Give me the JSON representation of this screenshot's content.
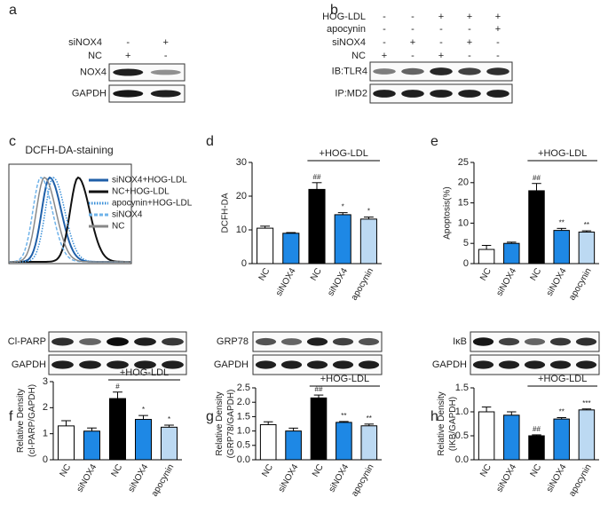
{
  "panel_letters": [
    "a",
    "b",
    "c",
    "d",
    "e",
    "f",
    "g",
    "h"
  ],
  "blot_a": {
    "conditions": [
      {
        "label": "siNOX4",
        "signs": [
          "-",
          "+"
        ]
      },
      {
        "label": "NC",
        "signs": [
          "+",
          "-"
        ]
      }
    ],
    "rows": [
      "NOX4",
      "GAPDH"
    ]
  },
  "blot_b": {
    "conditions": [
      {
        "label": "HOG-LDL",
        "signs": [
          "-",
          "-",
          "+",
          "+",
          "+"
        ]
      },
      {
        "label": "apocynin",
        "signs": [
          "-",
          "-",
          "-",
          "-",
          "+"
        ]
      },
      {
        "label": "siNOX4",
        "signs": [
          "-",
          "+",
          "-",
          "+",
          "-"
        ]
      },
      {
        "label": "NC",
        "signs": [
          "+",
          "-",
          "+",
          "-",
          "-"
        ]
      }
    ],
    "rows": [
      "IB:TLR4",
      "IP:MD2"
    ]
  },
  "flow_c": {
    "title": "DCFH-DA-staining",
    "legend": [
      {
        "name": "siNOX4+HOG-LDL",
        "color": "#1f5fa8",
        "line_style": "solid"
      },
      {
        "name": "NC+HOG-LDL",
        "color": "#111111",
        "line_style": "solid"
      },
      {
        "name": "apocynin+HOG-LDL",
        "color": "#3a8fd8",
        "line_style": "dotted"
      },
      {
        "name": "siNOX4",
        "color": "#6fb3ea",
        "line_style": "dashed"
      },
      {
        "name": "NC",
        "color": "#888888",
        "line_style": "solid"
      }
    ]
  },
  "blot_f": {
    "rows": [
      "Cl-PARP",
      "GAPDH"
    ]
  },
  "blot_g": {
    "rows": [
      "GRP78",
      "GAPDH"
    ]
  },
  "blot_h": {
    "rows": [
      "IκB",
      "GAPDH"
    ]
  },
  "chart_data": [
    {
      "type": "bar",
      "categories": [
        "NC",
        "siNOX4",
        "NC",
        "siNOX4",
        "apocynin"
      ],
      "values": [
        10.5,
        9,
        22,
        14.5,
        13.2
      ],
      "errors": [
        0.6,
        0.2,
        2,
        0.6,
        0.6
      ],
      "colors": [
        "#ffffff",
        "#1e88e5",
        "#000000",
        "#1e88e5",
        "#bcd9f2"
      ],
      "ylabel": [
        "DCFH-DA"
      ],
      "ylim": [
        0,
        30
      ],
      "yticks": [
        0,
        10,
        20,
        30
      ],
      "annotations": [
        null,
        null,
        "##",
        "*",
        "*"
      ],
      "bracket_label": "+HOG-LDL"
    },
    {
      "type": "bar",
      "categories": [
        "NC",
        "siNOX4",
        "NC",
        "siNOX4",
        "apocynin"
      ],
      "values": [
        3.5,
        5,
        18,
        8.2,
        7.8
      ],
      "errors": [
        1,
        0.3,
        1.8,
        0.5,
        0.3
      ],
      "colors": [
        "#ffffff",
        "#1e88e5",
        "#000000",
        "#1e88e5",
        "#bcd9f2"
      ],
      "ylabel": [
        "Apoptosis(%)"
      ],
      "ylim": [
        0,
        25
      ],
      "yticks": [
        0,
        5,
        10,
        15,
        20,
        25
      ],
      "annotations": [
        null,
        null,
        "##",
        "**",
        "**"
      ],
      "bracket_label": "+HOG-LDL"
    },
    {
      "type": "bar",
      "categories": [
        "NC",
        "siNOX4",
        "NC",
        "siNOX4",
        "apocynin"
      ],
      "values": [
        1.3,
        1.1,
        2.35,
        1.55,
        1.25
      ],
      "errors": [
        0.2,
        0.12,
        0.25,
        0.15,
        0.08
      ],
      "colors": [
        "#ffffff",
        "#1e88e5",
        "#000000",
        "#1e88e5",
        "#bcd9f2"
      ],
      "ylabel": [
        "Relative Density",
        "(cl-PARP/GAPDH)"
      ],
      "ylim": [
        0,
        3
      ],
      "yticks": [
        0,
        1,
        2,
        3
      ],
      "annotations": [
        null,
        null,
        "#",
        "*",
        "*"
      ],
      "bracket_label": "+HOG-LDL"
    },
    {
      "type": "bar",
      "categories": [
        "NC",
        "siNOX4",
        "NC",
        "siNOX4",
        "apocynin"
      ],
      "values": [
        1.22,
        1.0,
        2.15,
        1.3,
        1.18
      ],
      "errors": [
        0.1,
        0.1,
        0.1,
        0.03,
        0.06
      ],
      "colors": [
        "#ffffff",
        "#1e88e5",
        "#000000",
        "#1e88e5",
        "#bcd9f2"
      ],
      "ylabel": [
        "Relative Density",
        "(GRP78/GAPDH)"
      ],
      "ylim": [
        0,
        2.5
      ],
      "yticks": [
        {
          "value": 0,
          "label": "0.0"
        },
        0.5,
        {
          "value": 1,
          "label": "1.0"
        },
        1.5,
        {
          "value": 2,
          "label": "2.0"
        },
        2.5
      ],
      "annotations": [
        null,
        null,
        "##",
        "**",
        "**"
      ],
      "bracket_label": "+HOG-LDL"
    },
    {
      "type": "bar",
      "categories": [
        "NC",
        "siNOX4",
        "NC",
        "siNOX4",
        "apocynin"
      ],
      "values": [
        1.0,
        0.93,
        0.5,
        0.85,
        1.04
      ],
      "errors": [
        0.1,
        0.07,
        0.02,
        0.03,
        0.02
      ],
      "colors": [
        "#ffffff",
        "#1e88e5",
        "#000000",
        "#1e88e5",
        "#bcd9f2"
      ],
      "ylabel": [
        "Relative Density",
        "(IKB/GAPDH)"
      ],
      "ylim": [
        0,
        1.5
      ],
      "yticks": [
        {
          "value": 0,
          "label": "0.0"
        },
        0.5,
        {
          "value": 1,
          "label": "1.0"
        },
        1.5
      ],
      "annotations": [
        null,
        null,
        "##",
        "**",
        "***"
      ],
      "bracket_label": "+HOG-LDL"
    }
  ]
}
